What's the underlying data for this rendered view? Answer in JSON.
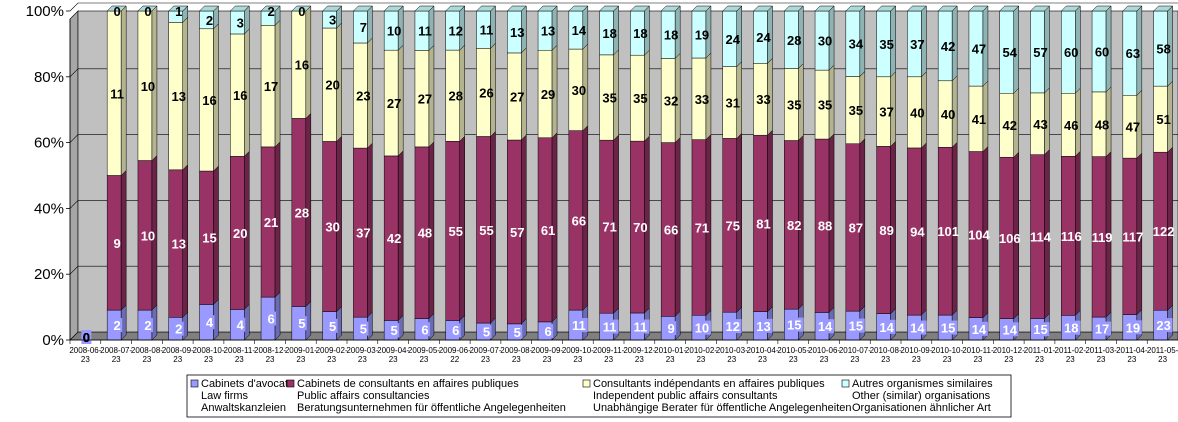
{
  "chart_data": {
    "type": "bar",
    "stacked": "percent",
    "title": "",
    "xlabel": "",
    "ylabel": "",
    "ylim": [
      0,
      100
    ],
    "yticks": [
      "0%",
      "20%",
      "40%",
      "60%",
      "80%",
      "100%"
    ],
    "grid": true,
    "legend_position": "bottom",
    "categories": [
      "2008-06-23",
      "2008-07-23",
      "2008-08-23",
      "2008-09-23",
      "2008-10-23",
      "2008-11-23",
      "2008-12-23",
      "2009-01-23",
      "2009-02-23",
      "2009-03-23",
      "2009-04-23",
      "2009-05-23",
      "2009-06-22",
      "2009-07-23",
      "2009-08-23",
      "2009-09-23",
      "2009-10-23",
      "2009-11-23",
      "2009-12-23",
      "2010-01-23",
      "2010-02-23",
      "2010-03-23",
      "2010-04-23",
      "2010-05-23",
      "2010-06-23",
      "2010-07-23",
      "2010-08-23",
      "2010-09-23",
      "2010-10-23",
      "2010-11-23",
      "2010-12-23",
      "2011-01-23",
      "2011-02-23",
      "2011-03-23",
      "2011-04-23",
      "2011-05-23"
    ],
    "series": [
      {
        "name": "Cabinets d'avocats",
        "legend_lines": [
          "Cabinets d'avocats",
          "Law firms",
          "Anwaltskanzleien"
        ],
        "color": "#9999ff",
        "values": [
          0,
          2,
          2,
          2,
          4,
          4,
          6,
          5,
          5,
          5,
          5,
          6,
          6,
          5,
          5,
          6,
          11,
          11,
          11,
          9,
          10,
          12,
          13,
          15,
          14,
          15,
          14,
          14,
          15,
          14,
          14,
          15,
          18,
          17,
          19,
          23
        ]
      },
      {
        "name": "Cabinets de consultants en affaires publiques",
        "legend_lines": [
          "Cabinets de consultants en affaires publiques",
          "Public affairs consultancies",
          "Beratungsunternehmen für öffentliche Angelegenheiten"
        ],
        "color": "#993366",
        "values": [
          0,
          9,
          10,
          13,
          15,
          20,
          21,
          28,
          30,
          37,
          42,
          48,
          55,
          55,
          57,
          61,
          66,
          71,
          70,
          66,
          71,
          75,
          81,
          82,
          88,
          87,
          89,
          94,
          101,
          104,
          106,
          114,
          116,
          119,
          117,
          122
        ]
      },
      {
        "name": "Consultants indépendants en affaires publiques",
        "legend_lines": [
          "Consultants indépendants en affaires publiques",
          "Independent public affairs consultants",
          "Unabhängige Berater für öffentliche Angelegenheiten"
        ],
        "color": "#ffffcc",
        "values": [
          0,
          11,
          10,
          13,
          16,
          16,
          17,
          16,
          20,
          23,
          27,
          27,
          28,
          26,
          27,
          29,
          30,
          35,
          35,
          32,
          33,
          31,
          33,
          35,
          35,
          35,
          37,
          40,
          40,
          41,
          42,
          43,
          46,
          48,
          47,
          51
        ]
      },
      {
        "name": "Autres organismes similaires",
        "legend_lines": [
          "Autres organismes similaires",
          "Other (similar) organisations",
          "Organisationen ähnlicher Art"
        ],
        "color": "#ccffff",
        "values": [
          0,
          0,
          0,
          1,
          2,
          3,
          2,
          0,
          3,
          7,
          10,
          11,
          12,
          11,
          13,
          13,
          14,
          18,
          18,
          18,
          19,
          24,
          24,
          28,
          30,
          34,
          35,
          37,
          42,
          47,
          54,
          57,
          60,
          60,
          63,
          58
        ]
      }
    ]
  }
}
